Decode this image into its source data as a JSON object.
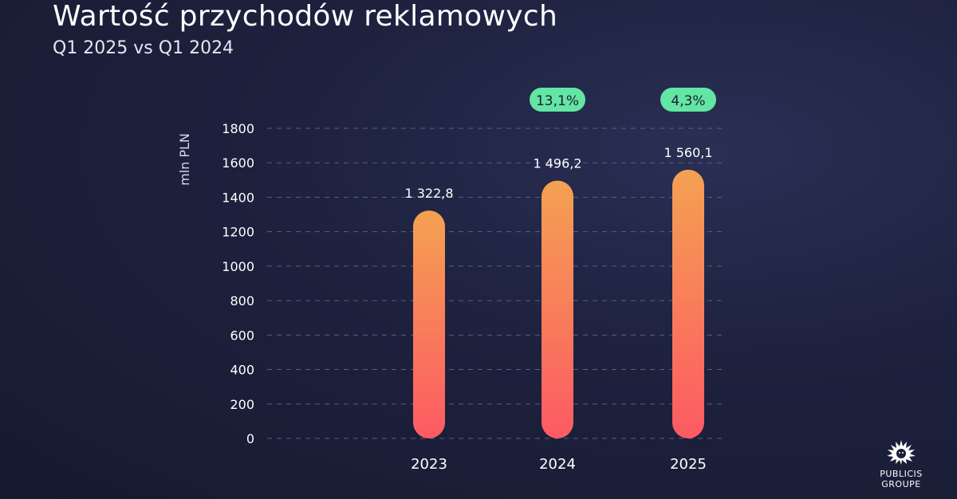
{
  "header": {
    "title": "Wartość przychodów reklamowych",
    "subtitle": "Q1 2025 vs Q1 2024"
  },
  "chart_data": {
    "type": "bar",
    "categories": [
      "2023",
      "2024",
      "2025"
    ],
    "values": [
      1322.8,
      1496.2,
      1560.1
    ],
    "value_labels": [
      "1 322,8",
      "1 496,2",
      "1 560,1"
    ],
    "growth_badges": [
      "",
      "13,1%",
      "4,3%"
    ],
    "ylabel": "mln PLN",
    "ylim": [
      0,
      1800
    ],
    "yticks": [
      "0",
      "200",
      "400",
      "600",
      "800",
      "1000",
      "1200",
      "1400",
      "1600",
      "1800"
    ],
    "grid": true,
    "colors": {
      "bar_top": "#f4a152",
      "bar_bottom": "#fd5a63",
      "badge": "#63e5a4",
      "grid": "#5a5f80"
    }
  },
  "logo": {
    "line1": "PUBLICIS",
    "line2": "GROUPE",
    "icon": "lion-head-icon"
  }
}
